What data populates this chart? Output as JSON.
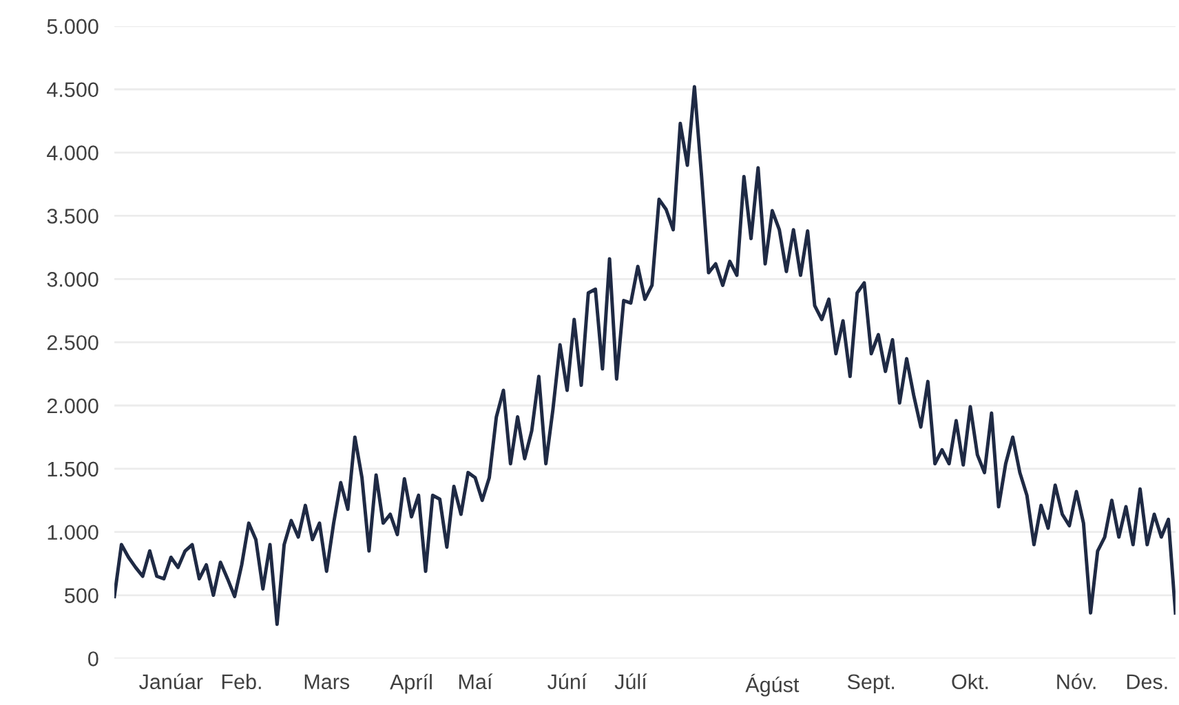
{
  "chart_data": {
    "type": "line",
    "categories": [
      null,
      null,
      null,
      null,
      null,
      null,
      null,
      null,
      "Janúar",
      null,
      null,
      null,
      null,
      null,
      null,
      null,
      null,
      null,
      "Feb.",
      null,
      null,
      null,
      null,
      null,
      null,
      null,
      null,
      null,
      null,
      null,
      "Mars",
      null,
      null,
      null,
      null,
      null,
      null,
      null,
      null,
      null,
      null,
      null,
      "Apríl",
      null,
      null,
      null,
      null,
      null,
      null,
      null,
      null,
      "Maí",
      null,
      null,
      null,
      null,
      null,
      null,
      null,
      null,
      null,
      null,
      null,
      null,
      "Júní",
      null,
      null,
      null,
      null,
      null,
      null,
      null,
      null,
      "Júlí",
      null,
      null,
      null,
      null,
      null,
      null,
      null,
      null,
      null,
      null,
      null,
      null,
      null,
      null,
      null,
      null,
      null,
      null,
      null,
      "Ágúst",
      null,
      null,
      null,
      null,
      null,
      null,
      null,
      null,
      null,
      null,
      null,
      null,
      null,
      "Sept.",
      null,
      null,
      null,
      null,
      null,
      null,
      null,
      null,
      null,
      null,
      null,
      null,
      null,
      "Okt.",
      null,
      null,
      null,
      null,
      null,
      null,
      null,
      null,
      null,
      null,
      null,
      null,
      null,
      null,
      "Nóv.",
      null,
      null,
      null,
      null,
      null,
      null,
      null,
      null,
      null,
      "Des.",
      null,
      null,
      null,
      null
    ],
    "series": [
      {
        "color": "#1f2a44",
        "values": [
          490,
          900,
          800,
          720,
          650,
          850,
          650,
          630,
          800,
          720,
          850,
          900,
          630,
          740,
          500,
          760,
          630,
          490,
          740,
          1070,
          940,
          550,
          900,
          270,
          900,
          1090,
          960,
          1210,
          940,
          1070,
          690,
          1070,
          1390,
          1180,
          1750,
          1430,
          850,
          1450,
          1070,
          1140,
          980,
          1420,
          1120,
          1290,
          690,
          1290,
          1260,
          880,
          1360,
          1140,
          1470,
          1430,
          1250,
          1430,
          1910,
          2120,
          1540,
          1910,
          1580,
          1800,
          2230,
          1540,
          1970,
          2480,
          2120,
          2680,
          2160,
          2890,
          2920,
          2290,
          3160,
          2210,
          2830,
          2810,
          3100,
          2840,
          2950,
          3630,
          3550,
          3390,
          4230,
          3900,
          4520,
          3820,
          3050,
          3120,
          2950,
          3140,
          3030,
          3810,
          3320,
          3880,
          3120,
          3540,
          3390,
          3060,
          3390,
          3030,
          3380,
          2790,
          2680,
          2840,
          2410,
          2670,
          2230,
          2890,
          2970,
          2410,
          2560,
          2270,
          2520,
          2020,
          2370,
          2080,
          1830,
          2190,
          1540,
          1650,
          1540,
          1880,
          1530,
          1990,
          1610,
          1470,
          1940,
          1200,
          1540,
          1750,
          1470,
          1290,
          900,
          1210,
          1030,
          1370,
          1140,
          1050,
          1320,
          1070,
          360,
          850,
          960,
          1250,
          960,
          1200,
          900,
          1340,
          900,
          1140,
          960,
          1100,
          360
        ]
      }
    ],
    "ylim": [
      0,
      5000
    ],
    "yticks": [
      {
        "value": 0,
        "label": "0"
      },
      {
        "value": 500,
        "label": "500"
      },
      {
        "value": 1000,
        "label": "1.000"
      },
      {
        "value": 1500,
        "label": "1.500"
      },
      {
        "value": 2000,
        "label": "2.000"
      },
      {
        "value": 2500,
        "label": "2.500"
      },
      {
        "value": 3000,
        "label": "3.000"
      },
      {
        "value": 3500,
        "label": "3.500"
      },
      {
        "value": 4000,
        "label": "4.000"
      },
      {
        "value": 4500,
        "label": "4.500"
      },
      {
        "value": 5000,
        "label": "5.000"
      }
    ],
    "grid": "y"
  }
}
